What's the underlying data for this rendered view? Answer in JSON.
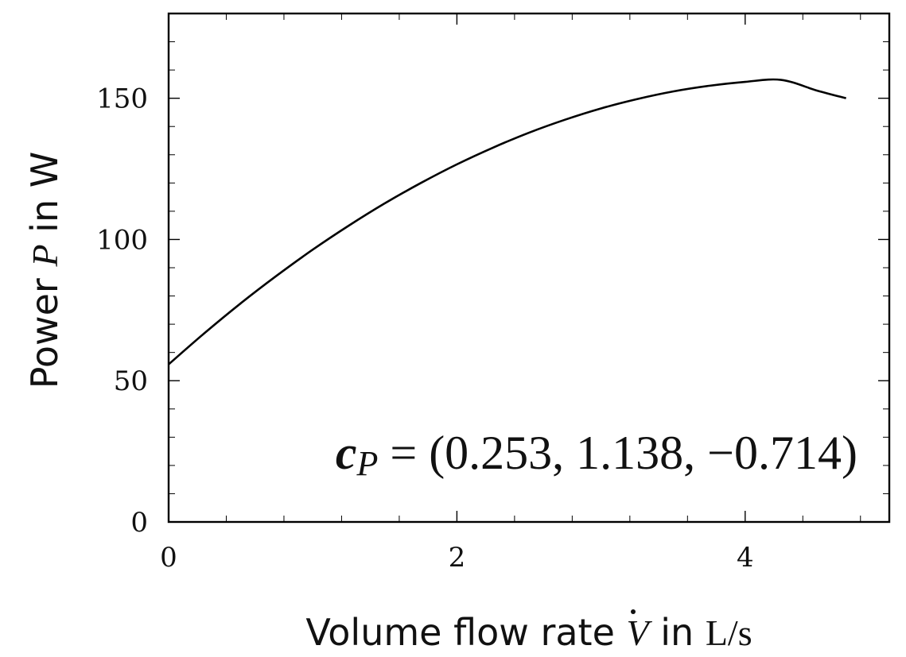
{
  "chart_data": {
    "type": "line",
    "title": "",
    "xlabel": {
      "prefix": "Volume flow rate ",
      "symbol": "V",
      "middle": " in ",
      "unit": "L/s"
    },
    "ylabel": {
      "prefix": "Power ",
      "symbol": "P",
      "middle": " in ",
      "unit": "W"
    },
    "xlim": [
      0,
      5
    ],
    "ylim": [
      0,
      180
    ],
    "x_ticks": [
      0,
      2,
      4
    ],
    "y_ticks": [
      0,
      50,
      100,
      150
    ],
    "x_minor_step": 0.4,
    "y_minor_step": 10,
    "grid": false,
    "legend": "none",
    "series": [
      {
        "x": [
          0,
          0.25,
          0.5,
          0.75,
          1.0,
          1.25,
          1.5,
          1.75,
          2.0,
          2.25,
          2.5,
          2.75,
          3.0,
          3.25,
          3.5,
          3.75,
          4.0,
          4.25,
          4.5,
          4.7
        ],
        "y": [
          55.8,
          66.9,
          77.4,
          87.2,
          96.4,
          104.9,
          112.8,
          120.0,
          126.6,
          132.5,
          137.8,
          142.4,
          146.4,
          149.7,
          152.4,
          154.4,
          155.8,
          156.5,
          152.7,
          150.0
        ],
        "color": "#000000"
      }
    ],
    "annotation": {
      "symbol": "c",
      "subscript": "P",
      "equals": " = ",
      "tuple": "(0.253, 1.138, −0.714)"
    }
  }
}
